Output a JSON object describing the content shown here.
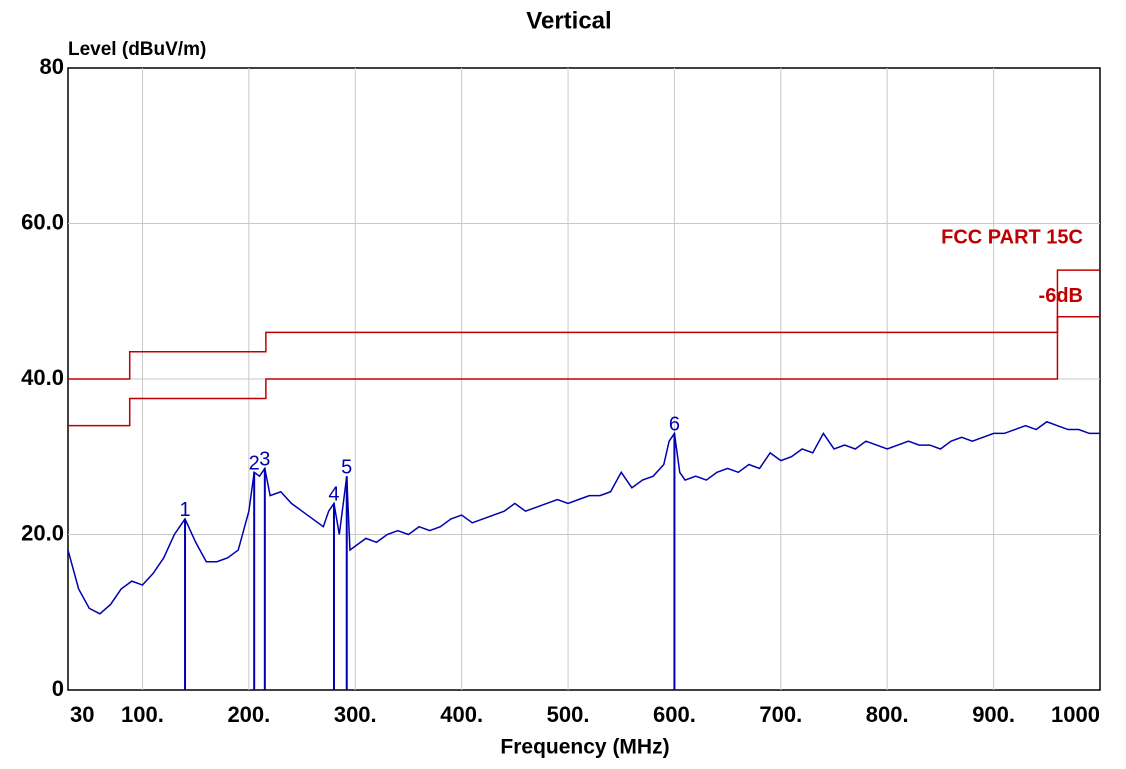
{
  "chart_data": {
    "type": "line",
    "title": "Vertical",
    "y_label": "Level (dBuV/m)",
    "x_label": "Frequency (MHz)",
    "xlim": [
      30,
      1000
    ],
    "ylim": [
      0,
      80
    ],
    "xticks": [
      30,
      {
        "value": 100,
        "label": "100."
      },
      {
        "value": 200,
        "label": "200."
      },
      {
        "value": 300,
        "label": "300."
      },
      {
        "value": 400,
        "label": "400."
      },
      {
        "value": 500,
        "label": "500."
      },
      {
        "value": 600,
        "label": "600."
      },
      {
        "value": 700,
        "label": "700."
      },
      {
        "value": 800,
        "label": "800."
      },
      {
        "value": 900,
        "label": "900."
      },
      1000
    ],
    "yticks": [
      0,
      {
        "value": 20,
        "label": "20.0"
      },
      {
        "value": 40,
        "label": "40.0"
      },
      {
        "value": 60,
        "label": "60.0"
      },
      80
    ],
    "grid": true,
    "series": [
      {
        "color": "#0000b0",
        "x": [
          30,
          40,
          50,
          60,
          70,
          80,
          90,
          100,
          110,
          120,
          130,
          140,
          150,
          160,
          170,
          180,
          190,
          200,
          205,
          210,
          215,
          220,
          230,
          240,
          250,
          260,
          270,
          275,
          280,
          285,
          292,
          295,
          300,
          310,
          320,
          330,
          340,
          350,
          360,
          370,
          380,
          390,
          400,
          410,
          420,
          430,
          440,
          450,
          460,
          470,
          480,
          490,
          500,
          510,
          520,
          530,
          540,
          550,
          560,
          570,
          580,
          590,
          595,
          600,
          605,
          610,
          620,
          630,
          640,
          650,
          660,
          670,
          680,
          690,
          700,
          710,
          720,
          730,
          740,
          750,
          760,
          770,
          780,
          790,
          800,
          810,
          820,
          830,
          840,
          850,
          860,
          870,
          880,
          890,
          900,
          910,
          920,
          930,
          940,
          950,
          960,
          970,
          980,
          990,
          1000
        ],
        "values": [
          18,
          13,
          10.5,
          9.8,
          11,
          13,
          14,
          13.5,
          15,
          17,
          20,
          22,
          19,
          16.5,
          16.5,
          17,
          18,
          23,
          28,
          27.5,
          28.5,
          25,
          25.5,
          24,
          23,
          22,
          21,
          23,
          24,
          20,
          27.5,
          18,
          18.5,
          19.5,
          19,
          20,
          20.5,
          20,
          21,
          20.5,
          21,
          22,
          22.5,
          21.5,
          22,
          22.5,
          23,
          24,
          23,
          23.5,
          24,
          24.5,
          24,
          24.5,
          25,
          25,
          25.5,
          28,
          26,
          27,
          27.5,
          29,
          32,
          33,
          28,
          27,
          27.5,
          27,
          28,
          28.5,
          28,
          29,
          28.5,
          30.5,
          29.5,
          30,
          31,
          30.5,
          33,
          31,
          31.5,
          31,
          32,
          31.5,
          31,
          31.5,
          32,
          31.5,
          31.5,
          31,
          32,
          32.5,
          32,
          32.5,
          33,
          33,
          33.5,
          34,
          33.5,
          34.5,
          34,
          33.5,
          33.5,
          33,
          33
        ]
      },
      {
        "name": "FCC PART 15C",
        "color": "#c00000",
        "x": [
          30,
          88,
          88,
          216,
          216,
          960,
          960,
          1000
        ],
        "values": [
          40,
          40,
          43.5,
          43.5,
          46,
          46,
          54,
          54
        ]
      },
      {
        "name": "-6dB",
        "color": "#c00000",
        "x": [
          30,
          88,
          88,
          216,
          216,
          960,
          960,
          1000
        ],
        "values": [
          34,
          34,
          37.5,
          37.5,
          40,
          40,
          48,
          48
        ]
      }
    ],
    "markers": {
      "color": "#0000b0",
      "labels": [
        "1",
        "2",
        "3",
        "4",
        "5",
        "6"
      ],
      "x": [
        140,
        205,
        215,
        280,
        292,
        600
      ],
      "values": [
        22,
        28,
        28.5,
        24,
        27.5,
        33
      ]
    }
  }
}
